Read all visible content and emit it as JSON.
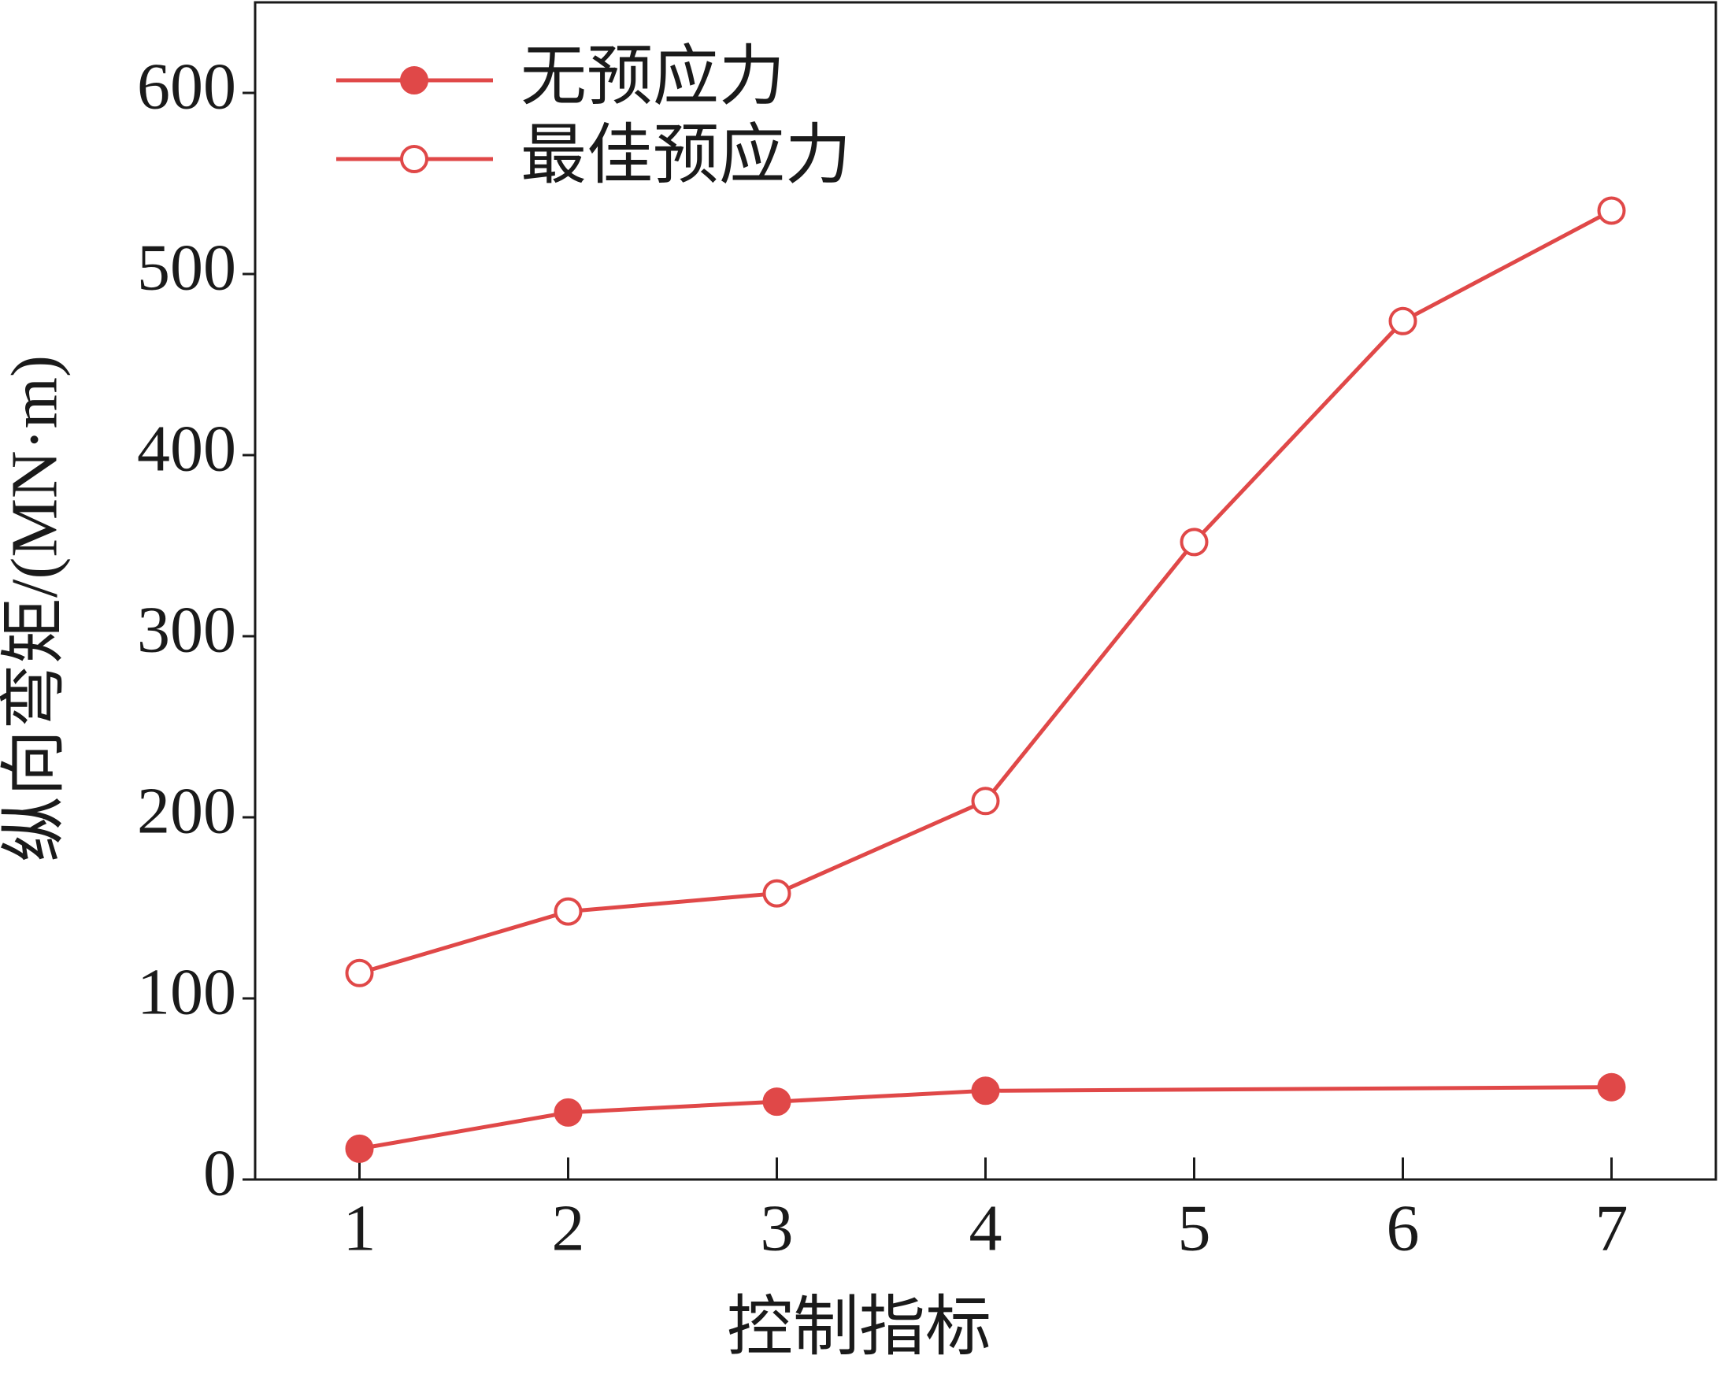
{
  "chart_data": {
    "type": "line",
    "x_label": "控制指标",
    "y_label": "纵向弯矩/(MN·m)",
    "xlim": [
      0.5,
      7.5
    ],
    "xticks": [
      1,
      2,
      3,
      4,
      5,
      6,
      7
    ],
    "ylim": [
      0,
      650
    ],
    "yticks": [
      0,
      100,
      200,
      300,
      400,
      500,
      600
    ],
    "series": [
      {
        "name": "无预应力",
        "color": "#e04848",
        "marker": "filled",
        "x": [
          1,
          2,
          3,
          4,
          7
        ],
        "values": [
          17,
          37,
          43,
          49,
          51
        ]
      },
      {
        "name": "最佳预应力",
        "color": "#e04848",
        "marker": "open",
        "x": [
          1,
          2,
          3,
          4,
          5,
          6,
          7
        ],
        "values": [
          114,
          148,
          158,
          209,
          352,
          474,
          535
        ]
      }
    ]
  }
}
